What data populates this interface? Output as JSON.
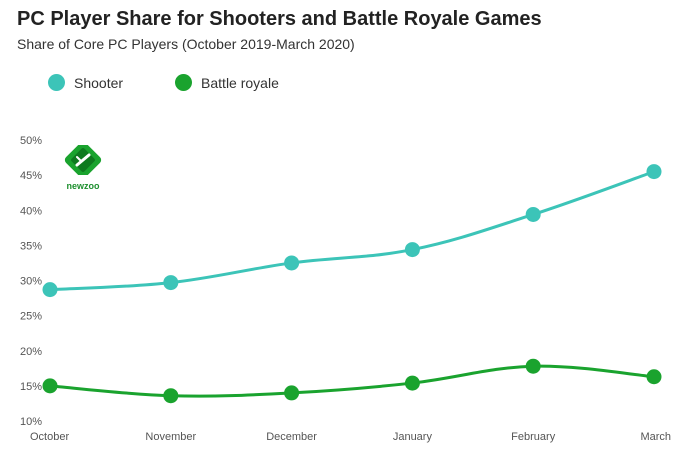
{
  "header": {
    "title": "PC Player Share for Shooters and Battle Royale Games",
    "subtitle": "Share of Core PC Players (October 2019-March 2020)"
  },
  "logo": {
    "text": "newzoo",
    "icon": "newzoo-logo-icon"
  },
  "colors": {
    "shooter": "#3cc4b8",
    "battle_royale": "#1aa32e",
    "tick_text": "#555555"
  },
  "chart_data": {
    "type": "line",
    "title": "PC Player Share for Shooters and Battle Royale Games",
    "subtitle": "Share of Core PC Players (October 2019-March 2020)",
    "categories": [
      "October",
      "November",
      "December",
      "January",
      "February",
      "March"
    ],
    "yticks": [
      "50%",
      "45%",
      "40%",
      "35%",
      "30%",
      "25%",
      "20%",
      "15%",
      "10%"
    ],
    "ylim": [
      10,
      50
    ],
    "legend_position": "top-left",
    "grid": false,
    "series": [
      {
        "name": "Shooter",
        "values": [
          28.7,
          29.7,
          32.5,
          34.4,
          39.4,
          45.5
        ]
      },
      {
        "name": "Battle royale",
        "values": [
          15.0,
          13.6,
          14.0,
          15.4,
          17.8,
          16.3
        ]
      }
    ]
  }
}
